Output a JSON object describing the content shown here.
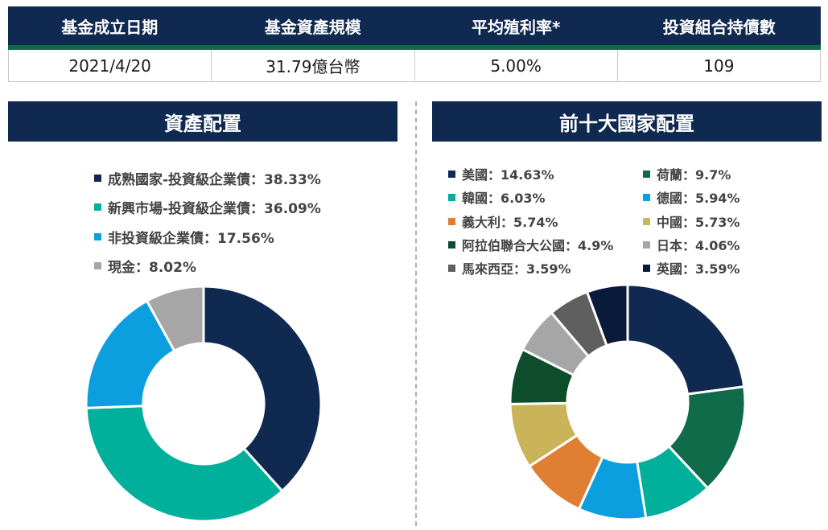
{
  "summary": {
    "headers": [
      "基金成立日期",
      "基金資產規模",
      "平均殖利率*",
      "投資組合持債數"
    ],
    "values": [
      "2021/4/20",
      "31.79億台幣",
      "5.00%",
      "109"
    ]
  },
  "colors": {
    "navy": "#0f2950",
    "accent_green": "#0f6b4a"
  },
  "chart_data": [
    {
      "type": "pie",
      "title": "資產配置",
      "donut": true,
      "legend": [
        "成熟國家-投資級企業債：38.33%",
        "新興市場-投資級企業債：36.09%",
        "非投資級企業債：17.56%",
        "現金：8.02%"
      ],
      "slices": [
        {
          "label": "成熟國家-投資級企業債",
          "value": 38.33,
          "color": "#0f2950"
        },
        {
          "label": "新興市場-投資級企業債",
          "value": 36.09,
          "color": "#00b09b"
        },
        {
          "label": "非投資級企業債",
          "value": 17.56,
          "color": "#0b9fe0"
        },
        {
          "label": "現金",
          "value": 8.02,
          "color": "#a6a6a6"
        }
      ]
    },
    {
      "type": "pie",
      "title": "前十大國家配置",
      "donut": true,
      "legend": [
        "美國：14.63%",
        "荷蘭：9.7%",
        "韓國：6.03%",
        "德國：5.94%",
        "義大利：5.74%",
        "中國：5.73%",
        "阿拉伯聯合大公國：4.9%",
        "日本：4.06%",
        "馬來西亞：3.59%",
        "英國：3.59%"
      ],
      "slices": [
        {
          "label": "美國",
          "value": 14.63,
          "color": "#0f2950"
        },
        {
          "label": "荷蘭",
          "value": 9.7,
          "color": "#0f6b4a"
        },
        {
          "label": "韓國",
          "value": 6.03,
          "color": "#00b09b"
        },
        {
          "label": "德國",
          "value": 5.94,
          "color": "#0b9fe0"
        },
        {
          "label": "義大利",
          "value": 5.74,
          "color": "#e07f33"
        },
        {
          "label": "中國",
          "value": 5.73,
          "color": "#c9b45a"
        },
        {
          "label": "阿拉伯聯合大公國",
          "value": 4.9,
          "color": "#0e4d2c"
        },
        {
          "label": "日本",
          "value": 4.06,
          "color": "#a6a6a6"
        },
        {
          "label": "馬來西亞",
          "value": 3.59,
          "color": "#5f5f5f"
        },
        {
          "label": "英國",
          "value": 3.59,
          "color": "#0a1a3a"
        }
      ]
    }
  ]
}
